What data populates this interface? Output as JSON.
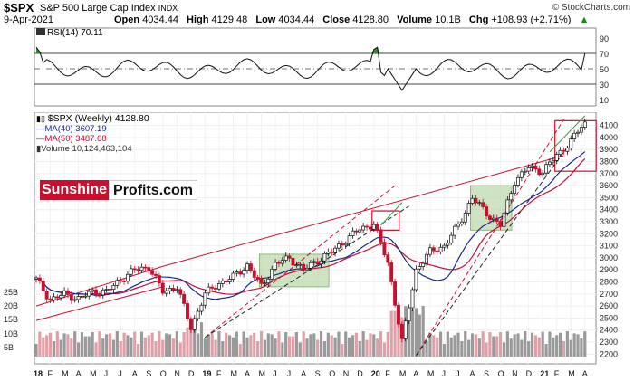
{
  "header": {
    "symbol": "$SPX",
    "name": "S&P 500 Large Cap Index",
    "exchange": "INDX",
    "date": "9-Apr-2021",
    "copyright": "© StockCharts.com",
    "open_label": "Open",
    "open": "4034.44",
    "high_label": "High",
    "high": "4129.48",
    "low_label": "Low",
    "low": "4034.44",
    "close_label": "Close",
    "close": "4128.80",
    "volume_label": "Volume",
    "volume": "10.1B",
    "chg_label": "Chg",
    "chg": "+108.93 (+2.71%)",
    "chg_arrow": "▲"
  },
  "rsi_panel": {
    "label": "RSI(14) 70.11",
    "ticks": [
      "90",
      "70",
      "50",
      "30",
      "10"
    ]
  },
  "legend": {
    "main": "$SPX (Weekly) 4128.80",
    "ma40": "MA(40) 3607.19",
    "ma50": "MA(50) 3487.68",
    "volume": "Volume 10,124,463,104"
  },
  "brand": {
    "part1": "Sunshine",
    "part2": "Profits.com"
  },
  "colors": {
    "ma40": "#1a2a8c",
    "ma50": "#c0103c",
    "trend_red": "#c8102e",
    "trend_green": "#2e9a3e",
    "trend_black": "#222222",
    "box_fill": "#b9d7a7",
    "volume_up": "#9a9a9a",
    "volume_down": "#e0a0a8",
    "rsi_fill": "#3c8a3c"
  },
  "chart_data": {
    "type": "candlestick",
    "title": "$SPX (Weekly)",
    "y_ticks": [
      "4100",
      "4000",
      "3900",
      "3800",
      "3700",
      "3600",
      "3500",
      "3400",
      "3300",
      "3200",
      "3100",
      "3000",
      "2900",
      "2800",
      "2700",
      "2600",
      "2500",
      "2400",
      "2300",
      "2200"
    ],
    "volume_ticks": [
      "25B",
      "20B",
      "15B",
      "10B",
      "5B"
    ],
    "x_ticks": [
      "18",
      "F",
      "M",
      "A",
      "M",
      "J",
      "J",
      "A",
      "S",
      "O",
      "N",
      "D",
      "19",
      "F",
      "M",
      "A",
      "M",
      "J",
      "J",
      "A",
      "S",
      "O",
      "N",
      "D",
      "20",
      "F",
      "M",
      "A",
      "M",
      "J",
      "J",
      "A",
      "S",
      "O",
      "N",
      "D",
      "21",
      "F",
      "M",
      "A"
    ],
    "ylim": [
      2180,
      4180
    ],
    "series": [
      {
        "name": "$SPX close (approx.)",
        "points": [
          [
            "2018-01",
            2820
          ],
          [
            "2018-02",
            2650
          ],
          [
            "2018-03",
            2700
          ],
          [
            "2018-04",
            2660
          ],
          [
            "2018-05",
            2720
          ],
          [
            "2018-06",
            2720
          ],
          [
            "2018-07",
            2820
          ],
          [
            "2018-08",
            2900
          ],
          [
            "2018-09",
            2925
          ],
          [
            "2018-10",
            2720
          ],
          [
            "2018-11",
            2760
          ],
          [
            "2018-12",
            2420
          ],
          [
            "2019-01",
            2700
          ],
          [
            "2019-02",
            2790
          ],
          [
            "2019-03",
            2840
          ],
          [
            "2019-04",
            2940
          ],
          [
            "2019-05",
            2760
          ],
          [
            "2019-06",
            2950
          ],
          [
            "2019-07",
            3000
          ],
          [
            "2019-08",
            2900
          ],
          [
            "2019-09",
            2980
          ],
          [
            "2019-10",
            3050
          ],
          [
            "2019-11",
            3150
          ],
          [
            "2019-12",
            3240
          ],
          [
            "2020-01",
            3280
          ],
          [
            "2020-02",
            2960
          ],
          [
            "2020-03",
            2300
          ],
          [
            "2020-04",
            2900
          ],
          [
            "2020-05",
            3050
          ],
          [
            "2020-06",
            3100
          ],
          [
            "2020-07",
            3270
          ],
          [
            "2020-08",
            3500
          ],
          [
            "2020-09",
            3370
          ],
          [
            "2020-10",
            3270
          ],
          [
            "2020-11",
            3640
          ],
          [
            "2020-12",
            3750
          ],
          [
            "2021-01",
            3720
          ],
          [
            "2021-02",
            3850
          ],
          [
            "2021-03",
            3970
          ],
          [
            "2021-04",
            4129
          ]
        ]
      },
      {
        "name": "MA(40)",
        "value": 3607.19
      },
      {
        "name": "MA(50)",
        "value": 3487.68
      }
    ],
    "annotations": {
      "boxes": [
        {
          "from": "2019-05",
          "to": "2019-09",
          "y": [
            2760,
            3030
          ],
          "style": "green-fill"
        },
        {
          "from": "2020-08",
          "to": "2020-10",
          "y": [
            3230,
            3600
          ],
          "style": "green-fill"
        },
        {
          "from": "2020-01",
          "to": "2020-02",
          "y": [
            3230,
            3390
          ],
          "style": "red-outline"
        },
        {
          "from": "2021-02",
          "to": "2021-04",
          "y": [
            3720,
            4140
          ],
          "style": "red-outline"
        }
      ]
    }
  }
}
